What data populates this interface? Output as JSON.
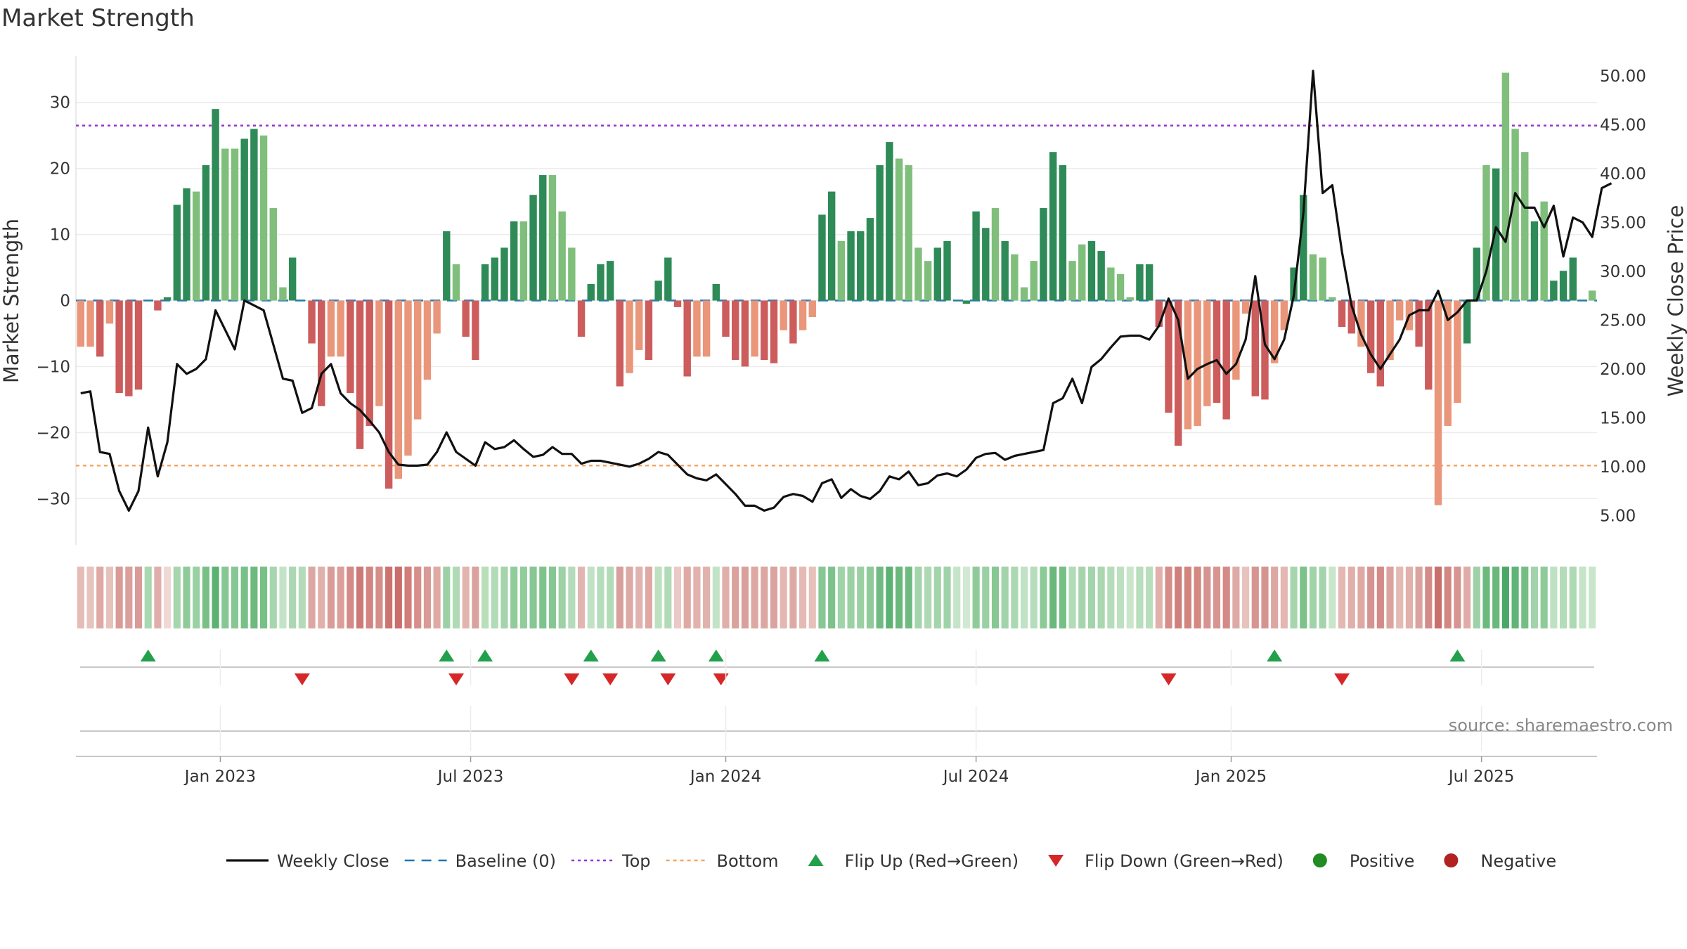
{
  "title": "Market Strength",
  "source": "source: sharemaestro.com",
  "colors": {
    "strong_green": "#2e8b57",
    "light_green": "#7fbf7b",
    "strong_red": "#cd5c5c",
    "light_red": "#e9967a",
    "close_line": "#111111",
    "baseline": "#1f77b4",
    "top": "#9932cc",
    "bottom": "#f4a460",
    "flip_up": "#22a04b",
    "flip_down": "#d62728",
    "positive": "#228b22",
    "negative": "#b22222"
  },
  "chart_data": {
    "type": "bar",
    "ylabel": "Market Strength",
    "y2label": "Weekly Close Price",
    "ylim": [
      -37,
      37
    ],
    "y2lim": [
      2.0,
      52.0
    ],
    "y_ticks": [
      30,
      20,
      10,
      0,
      -10,
      -20,
      -30
    ],
    "y_tick_labels": [
      "30",
      "20",
      "10",
      "0",
      "−10",
      "−20",
      "−30"
    ],
    "y2_ticks": [
      50,
      45,
      40,
      35,
      30,
      25,
      20,
      15,
      10,
      5
    ],
    "y2_tick_labels": [
      "50.00",
      "45.00",
      "40.00",
      "35.00",
      "30.00",
      "25.00",
      "20.00",
      "15.00",
      "10.00",
      "5.00"
    ],
    "x_ticks": [
      {
        "label": "Jan 2023",
        "week": 15
      },
      {
        "label": "Jul 2023",
        "week": 41
      },
      {
        "label": "Jan 2024",
        "week": 67.5
      },
      {
        "label": "Jul 2024",
        "week": 93.5
      },
      {
        "label": "Jan 2025",
        "week": 120
      },
      {
        "label": "Jul 2025",
        "week": 146
      }
    ],
    "top_level": 26.5,
    "bottom_level": -25,
    "baseline": 0,
    "series": [
      {
        "name": "Market Strength",
        "values": [
          -7,
          -7,
          -8.5,
          -3.5,
          -14,
          -14.5,
          -13.5,
          0,
          -1.5,
          0.5,
          14.5,
          17,
          16.5,
          20.5,
          29,
          23,
          23,
          24.5,
          26,
          25,
          14,
          2,
          6.5,
          0,
          -6.5,
          -16,
          -8.5,
          -8.5,
          -14,
          -22.5,
          -19,
          -16,
          -28.5,
          -27,
          -23.5,
          -18,
          -12,
          -5,
          10.5,
          5.5,
          -5.5,
          -9,
          5.5,
          6.5,
          8,
          12,
          12,
          16,
          19,
          19,
          13.5,
          8,
          -5.5,
          2.5,
          5.5,
          6,
          -13,
          -11,
          -7.5,
          -9,
          3,
          6.5,
          -1,
          -11.5,
          -8.5,
          -8.5,
          2.5,
          -5.5,
          -9,
          -10,
          -8.5,
          -9,
          -9.5,
          -4.5,
          -6.5,
          -4.5,
          -2.5,
          13,
          16.5,
          9,
          10.5,
          10.5,
          12.5,
          20.5,
          24,
          21.5,
          20.5,
          8,
          6,
          8,
          9,
          0,
          -0.5,
          13.5,
          11,
          14,
          9,
          7,
          2,
          6,
          14,
          22.5,
          20.5,
          6,
          8.5,
          9,
          7.5,
          5,
          4,
          0.5,
          5.5,
          5.5,
          -4,
          -17,
          -22,
          -19.5,
          -19,
          -16,
          -15.5,
          -18,
          -12,
          -2,
          -14.5,
          -15,
          -9.5,
          -4.5,
          5,
          16,
          7,
          6.5,
          0.5,
          -4,
          -5,
          -7,
          -11,
          -13,
          -9,
          -3,
          -4.5,
          -7,
          -13.5,
          -31,
          -19,
          -15.5,
          -6.5,
          8,
          20.5,
          20,
          34.5,
          26,
          22.5,
          12,
          15,
          3,
          4.5,
          6.5,
          0,
          1.5
        ],
        "colors": [
          "lr",
          "lr",
          "sr",
          "lr",
          "sr",
          "sr",
          "sr",
          "sg",
          "sr",
          "sg",
          "sg",
          "sg",
          "lg",
          "sg",
          "sg",
          "lg",
          "lg",
          "sg",
          "sg",
          "lg",
          "lg",
          "lg",
          "sg",
          "sg",
          "sr",
          "sr",
          "lr",
          "lr",
          "sr",
          "sr",
          "sr",
          "lr",
          "sr",
          "lr",
          "lr",
          "lr",
          "lr",
          "lr",
          "sg",
          "lg",
          "sr",
          "sr",
          "sg",
          "sg",
          "sg",
          "sg",
          "lg",
          "sg",
          "sg",
          "lg",
          "lg",
          "lg",
          "sr",
          "sg",
          "sg",
          "sg",
          "sr",
          "lr",
          "lr",
          "sr",
          "sg",
          "sg",
          "sr",
          "sr",
          "lr",
          "lr",
          "sg",
          "sr",
          "sr",
          "sr",
          "lr",
          "sr",
          "sr",
          "lr",
          "sr",
          "lr",
          "lr",
          "sg",
          "sg",
          "lg",
          "sg",
          "sg",
          "sg",
          "sg",
          "sg",
          "lg",
          "lg",
          "lg",
          "lg",
          "sg",
          "sg",
          "sg",
          "sg",
          "sg",
          "sg",
          "lg",
          "sg",
          "lg",
          "lg",
          "lg",
          "sg",
          "sg",
          "sg",
          "lg",
          "lg",
          "sg",
          "sg",
          "lg",
          "lg",
          "lg",
          "sg",
          "sg",
          "sr",
          "sr",
          "sr",
          "lr",
          "lr",
          "lr",
          "sr",
          "sr",
          "lr",
          "lr",
          "sr",
          "sr",
          "lr",
          "lr",
          "sg",
          "sg",
          "lg",
          "lg",
          "lg",
          "sr",
          "sr",
          "lr",
          "sr",
          "sr",
          "lr",
          "lr",
          "lr",
          "sr",
          "sr",
          "lr",
          "lr",
          "lr",
          "sg",
          "sg",
          "lg",
          "sg",
          "lg",
          "lg",
          "lg",
          "sg",
          "lg",
          "sg",
          "sg",
          "sg",
          "sg"
        ]
      },
      {
        "name": "Weekly Close",
        "values": [
          17.5,
          17.7,
          11.5,
          11.3,
          7.5,
          5.5,
          7.5,
          14,
          9,
          12.5,
          20.5,
          19.5,
          20,
          21,
          26,
          24,
          22,
          27,
          26.5,
          26,
          22.5,
          19,
          18.8,
          15.5,
          16,
          19.5,
          20.5,
          17.5,
          16.5,
          15.8,
          14.7,
          13.5,
          11.5,
          10.2,
          10.1,
          10.1,
          10.2,
          11.5,
          13.5,
          11.5,
          10.8,
          10.1,
          12.5,
          11.8,
          12,
          12.7,
          11.8,
          11,
          11.2,
          12,
          11.3,
          11.3,
          10.3,
          10.6,
          10.6,
          10.4,
          10.2,
          10,
          10.3,
          10.8,
          11.5,
          11.2,
          10.2,
          9.2,
          8.8,
          8.6,
          9.2,
          8.2,
          7.2,
          6,
          6,
          5.5,
          5.8,
          6.9,
          7.2,
          7,
          6.4,
          8.3,
          8.7,
          6.8,
          7.7,
          7,
          6.7,
          7.5,
          9,
          8.7,
          9.5,
          8.1,
          8.3,
          9.1,
          9.3,
          9,
          9.7,
          10.9,
          11.3,
          11.4,
          10.7,
          11.1,
          11.3,
          11.5,
          11.7,
          16.5,
          17,
          19,
          16.5,
          20.2,
          21,
          22.2,
          23.3,
          23.4,
          23.4,
          23,
          24.4,
          27.2,
          25,
          19,
          20,
          20.5,
          20.9,
          19.5,
          20.5,
          23,
          29.5,
          22.5,
          21,
          23,
          27.5,
          36,
          50.5,
          38,
          38.8,
          32,
          26.5,
          23.5,
          21.5,
          20,
          21.5,
          23,
          25.5,
          26,
          26,
          28,
          25,
          25.8,
          27,
          27,
          30,
          34.5,
          33,
          38,
          36.5,
          36.5,
          34.5,
          36.7,
          31.5,
          35.5,
          35,
          33.5,
          38.5,
          39
        ]
      }
    ],
    "strength_strip_colors": [
      "#e6bcb7",
      "#e7c3bd",
      "#dfa9a5",
      "#e7c2bc",
      "#d99b98",
      "#daa09c",
      "#d89b97",
      "#a9d8b0",
      "#e0aeaa",
      "#f0d8d4",
      "#a7d6ae",
      "#8fcb99",
      "#99d1a2",
      "#79c087",
      "#5cb273",
      "#86c793",
      "#87c794",
      "#79c088",
      "#6eba7e",
      "#78c086",
      "#a7d5ae",
      "#c3e3c6",
      "#add7b3",
      "#b3dbb9",
      "#dca7a3",
      "#e0b1ab",
      "#d99c98",
      "#db9e99",
      "#d48b88",
      "#cd7a77",
      "#d28581",
      "#d58e89",
      "#cc7370",
      "#c96e6b",
      "#d17d79",
      "#d68f8a",
      "#d99b97",
      "#dfa9a4",
      "#9cd1a5",
      "#b0dab6",
      "#e1b4ae",
      "#d9a29e",
      "#b8deba",
      "#b2dbb7",
      "#a5d4ac",
      "#91cc9b",
      "#91cc9b",
      "#86c793",
      "#7ec38c",
      "#86c693",
      "#9ed1a6",
      "#b5dcba",
      "#e3b5b1",
      "#c1e2c5",
      "#b6ddbb",
      "#b2dbb7",
      "#d7a09c",
      "#dda9a4",
      "#e1b3ae",
      "#dea8a3",
      "#bde0c0",
      "#b1dab6",
      "#ebc9c4",
      "#dfa9a4",
      "#e2b2ad",
      "#e1b1ac",
      "#c3e3c6",
      "#e0afaa",
      "#daa29d",
      "#daa09c",
      "#dda7a2",
      "#dca6a1",
      "#dba39f",
      "#e4b7b2",
      "#dcaaa5",
      "#e5bab5",
      "#e7c0ba",
      "#86c793",
      "#7ec28b",
      "#a1d3a9",
      "#9ad0a3",
      "#9bd0a3",
      "#8fcb99",
      "#6fba80",
      "#5cb273",
      "#6ab87b",
      "#6fba80",
      "#a3d4ab",
      "#aed9b3",
      "#a3d4ab",
      "#a0d2a8",
      "#c6e4c8",
      "#d1e9d2",
      "#8fcb99",
      "#9ad0a3",
      "#87c793",
      "#a2d3aa",
      "#abd8b1",
      "#c1e2c5",
      "#b6ddbb",
      "#8ccb97",
      "#6ab87b",
      "#76bf85",
      "#b2dbb7",
      "#a6d5ad",
      "#a3d4ab",
      "#aad7b0",
      "#b6ddbb",
      "#bde0c0",
      "#c9e6cb",
      "#b8debb",
      "#b8debb",
      "#e2b0ab",
      "#d48d89",
      "#cf807c",
      "#d2857f",
      "#d3897f",
      "#d69490",
      "#d69591",
      "#d48a86",
      "#ddaaa5",
      "#e7c3bd",
      "#d69591",
      "#d69490",
      "#dca6a1",
      "#e4b7b2",
      "#a7d6ae",
      "#7cc28a",
      "#a1d3a9",
      "#a3d4ab",
      "#c9e6cb",
      "#e4b7b2",
      "#e0afaa",
      "#dea8a3",
      "#d69491",
      "#d48a86",
      "#dba39f",
      "#e4bab4",
      "#e1b1ac",
      "#dba39f",
      "#d48b87",
      "#c96f6b",
      "#d28781",
      "#d69591",
      "#dfaca8",
      "#9ed2a6",
      "#6bb97c",
      "#6ab87b",
      "#4aa866",
      "#60b476",
      "#74be84",
      "#a2d3aa",
      "#8ecb98",
      "#bfe1c3",
      "#b4dcb9",
      "#add9b3",
      "#c5e4c8",
      "#c9e6cb"
    ],
    "flip_up_weeks": [
      7,
      38,
      42,
      53,
      60,
      66,
      77,
      124,
      143
    ],
    "flip_down_weeks": [
      23,
      39,
      51,
      55,
      61,
      66.5,
      113,
      131
    ]
  },
  "legend": [
    {
      "label": "Weekly Close",
      "kind": "line"
    },
    {
      "label": "Baseline (0)",
      "kind": "dash"
    },
    {
      "label": "Top",
      "kind": "dot-purple"
    },
    {
      "label": "Bottom",
      "kind": "dot-orange"
    },
    {
      "label": "Flip Up (Red→Green)",
      "kind": "tri-up"
    },
    {
      "label": "Flip Down (Green→Red)",
      "kind": "tri-down"
    },
    {
      "label": "Positive",
      "kind": "circle-green"
    },
    {
      "label": "Negative",
      "kind": "circle-red"
    }
  ]
}
